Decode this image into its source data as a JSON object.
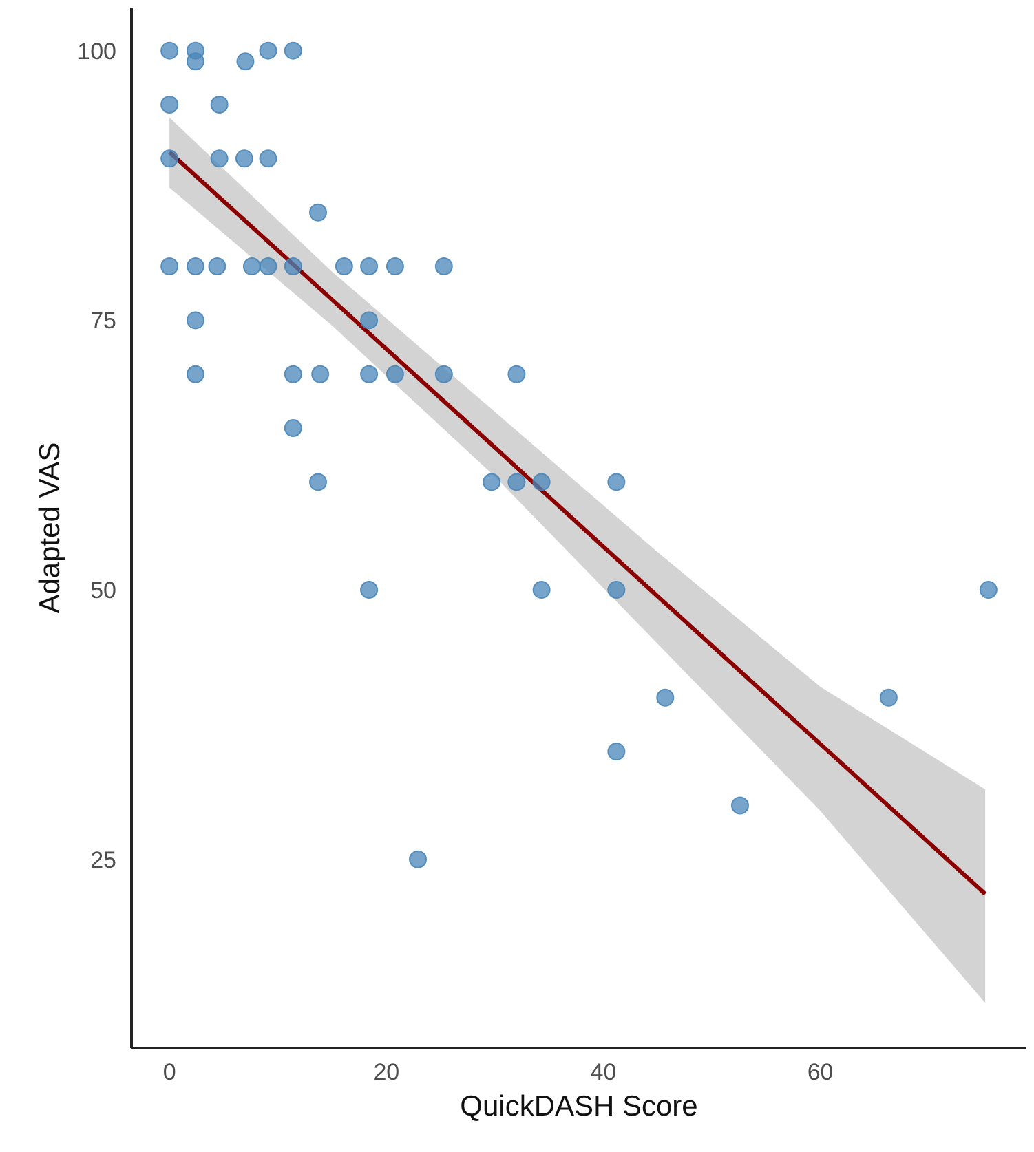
{
  "chart_data": {
    "type": "scatter",
    "xlabel": "QuickDASH Score",
    "ylabel": "Adapted VAS",
    "xlim": [
      -3.5,
      79
    ],
    "ylim": [
      7.5,
      104
    ],
    "xticks": [
      0,
      20,
      40,
      60
    ],
    "yticks": [
      25,
      50,
      75,
      100
    ],
    "grid": false,
    "marker": "circle",
    "series": [
      {
        "color": "#4a86b8",
        "x": [
          0,
          2.4,
          9.1,
          11.4,
          2.4,
          7.0,
          0,
          4.6,
          0,
          4.6,
          6.9,
          9.1,
          13.7,
          0,
          2.4,
          4.4,
          7.6,
          9.1,
          11.4,
          16.1,
          18.4,
          20.8,
          25.3,
          2.4,
          18.4,
          2.4,
          11.4,
          13.9,
          18.4,
          20.8,
          25.3,
          32.0,
          11.4,
          13.7,
          29.7,
          32.0,
          34.3,
          41.2,
          18.4,
          34.3,
          41.2,
          75.5,
          45.7,
          66.3,
          41.2,
          52.6,
          22.9
        ],
        "values": [
          100,
          100,
          100,
          100,
          99,
          99,
          95,
          95,
          90,
          90,
          90,
          90,
          85,
          80,
          80,
          80,
          80,
          80,
          80,
          80,
          80,
          80,
          80,
          75,
          75,
          70,
          70,
          70,
          70,
          70,
          70,
          70,
          65,
          60,
          60,
          60,
          60,
          60,
          50,
          50,
          50,
          50,
          40,
          40,
          35,
          30,
          25
        ]
      },
      {
        "type": "line",
        "marker": "none",
        "color": "#8b0000",
        "x": [
          0,
          15,
          30,
          45,
          60,
          75.2
        ],
        "values": [
          90.6,
          76.9,
          63.2,
          49.4,
          35.7,
          21.8
        ],
        "lower": [
          87.3,
          74.5,
          60.5,
          45,
          29.5,
          11.7
        ],
        "upper": [
          93.8,
          79.5,
          66.5,
          53.5,
          41,
          31.5
        ]
      }
    ]
  }
}
